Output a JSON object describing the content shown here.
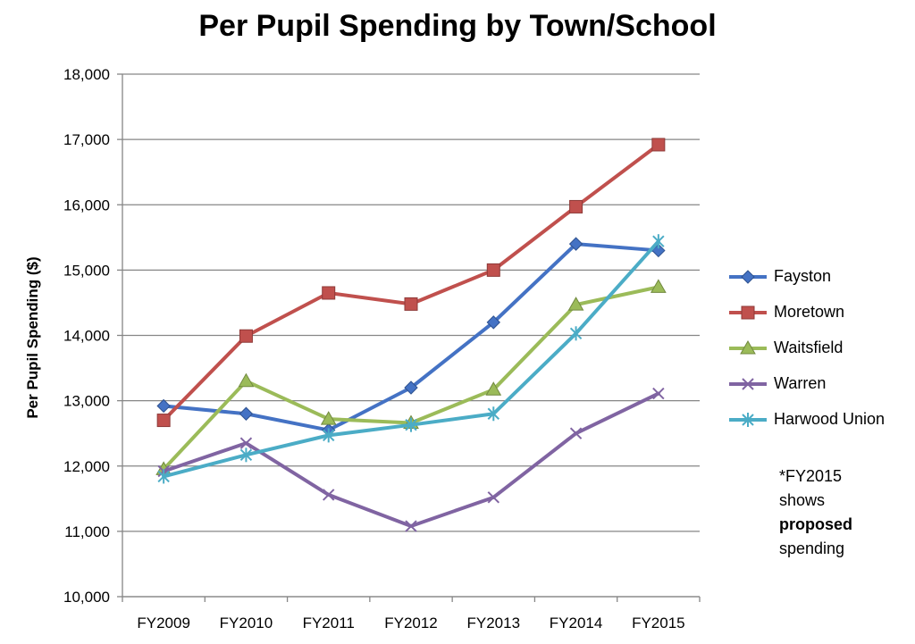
{
  "chart_data": {
    "type": "line",
    "title": "Per Pupil Spending by Town/School",
    "xlabel": "",
    "ylabel": "Per Pupil Spending ($)",
    "ylim": [
      10000,
      18000
    ],
    "yticks": [
      "10,000",
      "11,000",
      "12,000",
      "13,000",
      "14,000",
      "15,000",
      "16,000",
      "17,000",
      "18,000"
    ],
    "categories": [
      "FY2009",
      "FY2010",
      "FY2011",
      "FY2012",
      "FY2013",
      "FY2014",
      "FY2015"
    ],
    "grid": "horizontal",
    "legend_position": "right",
    "series": [
      {
        "name": "Fayston",
        "color": "#4472C4",
        "marker": "diamond",
        "values": [
          12920,
          12800,
          12550,
          13200,
          14200,
          15400,
          15300
        ]
      },
      {
        "name": "Moretown",
        "color": "#C0504D",
        "marker": "square",
        "values": [
          12700,
          13990,
          14650,
          14480,
          15000,
          15970,
          16920
        ]
      },
      {
        "name": "Waitsfield",
        "color": "#9BBB59",
        "marker": "triangle",
        "values": [
          11950,
          13300,
          12720,
          12660,
          13170,
          14470,
          14740
        ]
      },
      {
        "name": "Warren",
        "color": "#8064A2",
        "marker": "x",
        "values": [
          11920,
          12350,
          11560,
          11080,
          11520,
          12500,
          13110
        ]
      },
      {
        "name": "Harwood Union",
        "color": "#4BACC6",
        "marker": "star",
        "values": [
          11840,
          12170,
          12470,
          12630,
          12800,
          14030,
          15440
        ]
      }
    ],
    "annotation": {
      "line1": "*FY2015",
      "line2": "shows",
      "bold": "proposed",
      "line4": "spending"
    }
  }
}
